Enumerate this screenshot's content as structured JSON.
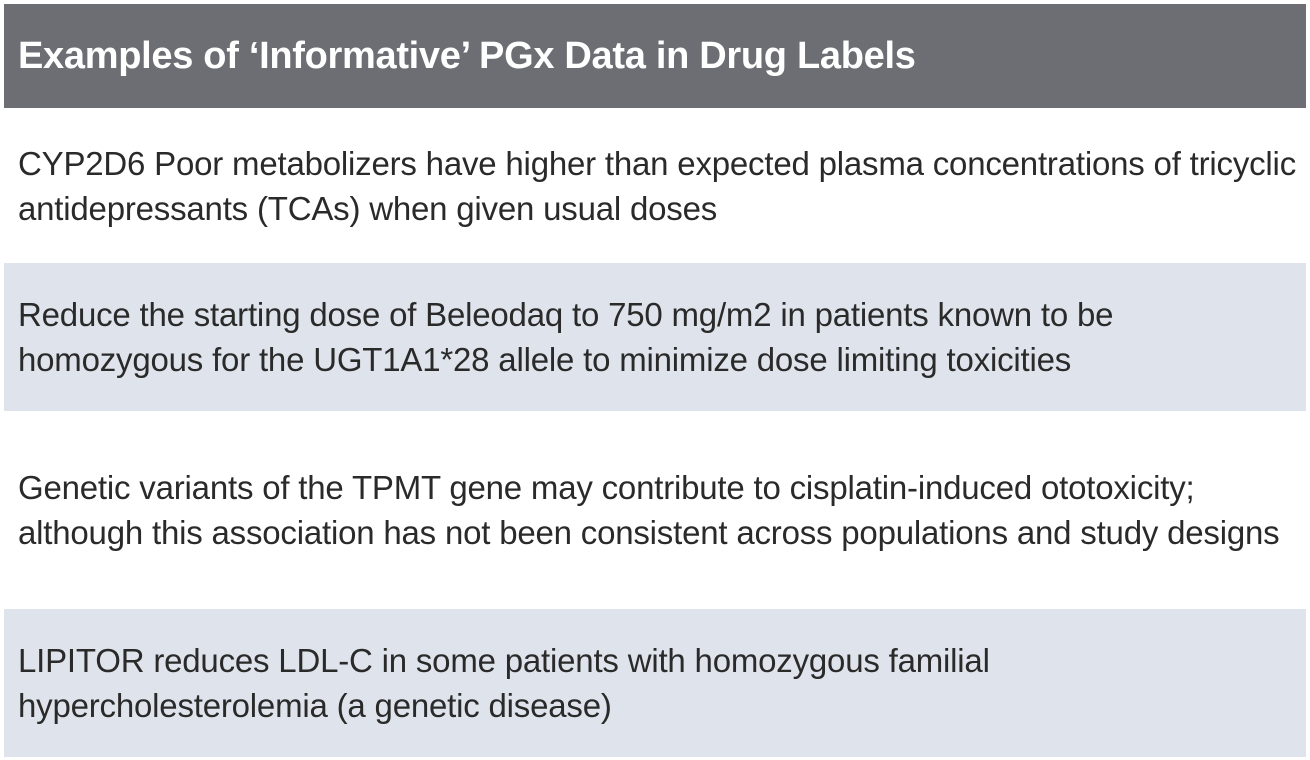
{
  "header": {
    "title": "Examples of ‘Informative’ PGx Data in Drug Labels"
  },
  "rows": [
    {
      "text": "CYP2D6 Poor metabolizers have higher than expected plasma concentrations of tricyclic antidepressants (TCAs) when given usual doses"
    },
    {
      "text": "Reduce the starting dose of Beleodaq to 750 mg/m2 in patients known to be homozygous for the UGT1A1*28 allele to minimize dose limiting toxicities"
    },
    {
      "text": "Genetic variants of the TPMT gene may contribute to cisplatin-induced ototoxicity; although this association has not been consistent across populations and study designs"
    },
    {
      "text": "LIPITOR reduces LDL-C in some patients with homozygous familial hypercholesterolemia (a genetic disease)"
    }
  ],
  "colors": {
    "header_bg": "#6c6e73",
    "header_text": "#ffffff",
    "row_alt_bg": "#dfe4ec",
    "row_bg": "#ffffff",
    "body_text": "#2a2a2a"
  }
}
